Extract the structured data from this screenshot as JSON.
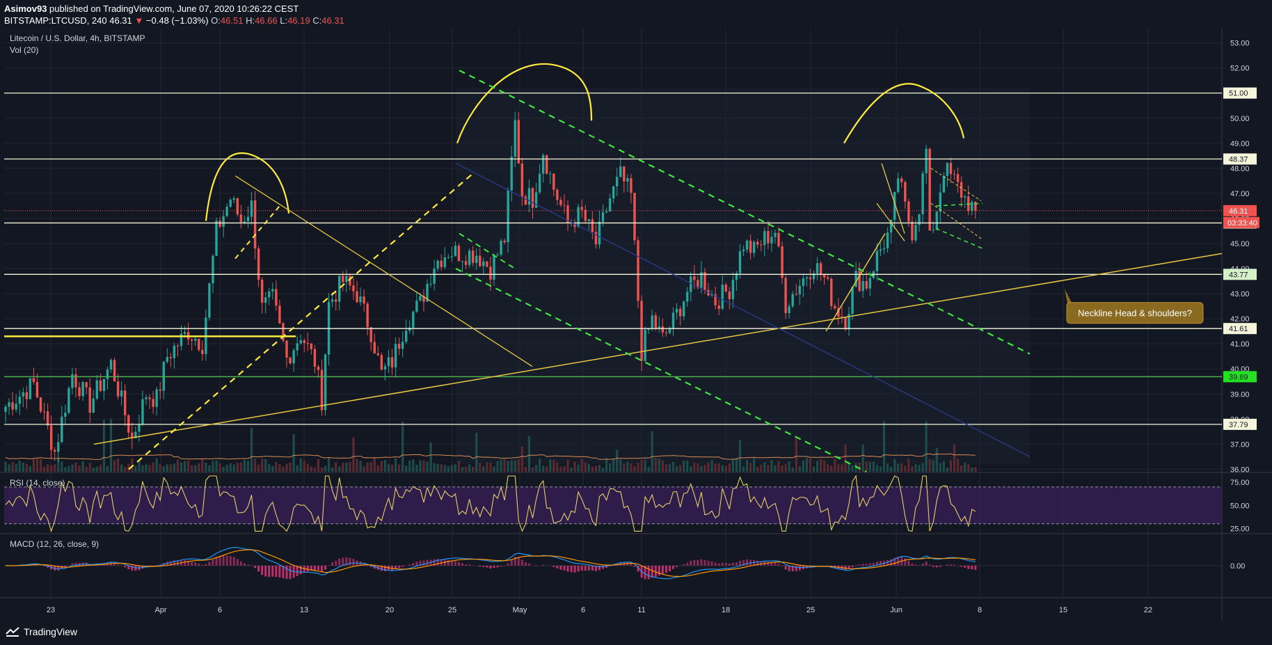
{
  "header": {
    "author": "Asimov93",
    "published_text": "published on TradingView.com, June 07, 2020 10:26:22 CEST",
    "symbol": "BITSTAMP:LTCUSD, 240",
    "last": "46.31",
    "change": "−0.48 (−1.03%)",
    "o_label": "O:",
    "o_value": "46.51",
    "h_label": "H:",
    "h_value": "46.66",
    "l_label": "L:",
    "l_value": "46.19",
    "c_label": "C:",
    "c_value": "46.31"
  },
  "footer": {
    "logo_text": "TradingView"
  },
  "colors": {
    "background": "#131722",
    "up": "#26a69a",
    "down": "#ef5350",
    "annotation_yellow": "#ffeb3b",
    "trend_green": "#3ee83e",
    "level_white": "#f5f5dc",
    "level_green": "#4caf50",
    "rsi_band": "#3a1f5c",
    "macd_line": "#2196f3",
    "signal_line": "#ff9800"
  },
  "chart_data": [
    {
      "type": "candlestick",
      "title": "Litecoin / U.S. Dollar, 4h, BITSTAMP",
      "volume_label": "Vol (20)",
      "x_tick_labels": [
        "23",
        "Apr",
        "6",
        "13",
        "20",
        "25",
        "May",
        "6",
        "11",
        "18",
        "25",
        "Jun",
        "8",
        "15",
        "22"
      ],
      "ylim": [
        35.9,
        53.6
      ],
      "y_tick_labels": [
        "53.00",
        "52.00",
        "51.00",
        "50.00",
        "49.00",
        "48.00",
        "47.00",
        "46.00",
        "45.00",
        "44.00",
        "43.00",
        "42.00",
        "41.00",
        "40.00",
        "39.00",
        "38.00",
        "37.00",
        "36.00"
      ],
      "price_labels": [
        {
          "value": 51.0,
          "text": "51.00",
          "style": "white"
        },
        {
          "value": 48.37,
          "text": "48.37",
          "style": "white"
        },
        {
          "value": 46.31,
          "text": "46.31",
          "style": "red"
        },
        {
          "value": 45.82,
          "text": "45.82",
          "style": "white"
        },
        {
          "value": 43.77,
          "text": "43.77",
          "style": "lightgreen"
        },
        {
          "value": 41.61,
          "text": "41.61",
          "style": "white"
        },
        {
          "value": 39.69,
          "text": "39.69",
          "style": "green"
        },
        {
          "value": 37.79,
          "text": "37.79",
          "style": "white"
        }
      ],
      "countdown": "03:33:40",
      "close_path_points": [
        [
          0,
          38.5
        ],
        [
          8,
          39.4
        ],
        [
          14,
          36.7
        ],
        [
          19,
          39.8
        ],
        [
          24,
          38.6
        ],
        [
          30,
          40.2
        ],
        [
          36,
          37.2
        ],
        [
          40,
          39.0
        ],
        [
          43,
          38.8
        ],
        [
          46,
          40.5
        ],
        [
          52,
          41.5
        ],
        [
          56,
          41.0
        ],
        [
          60,
          45.5
        ],
        [
          64,
          46.8
        ],
        [
          67,
          45.9
        ],
        [
          70,
          46.5
        ],
        [
          73,
          42.4
        ],
        [
          76,
          42.8
        ],
        [
          80,
          40.4
        ],
        [
          84,
          41.4
        ],
        [
          88,
          40.3
        ],
        [
          90,
          38.8
        ],
        [
          92,
          42.6
        ],
        [
          96,
          43.5
        ],
        [
          100,
          43.0
        ],
        [
          104,
          41.5
        ],
        [
          107,
          39.8
        ],
        [
          110,
          40.3
        ],
        [
          114,
          41.9
        ],
        [
          118,
          42.6
        ],
        [
          122,
          44.2
        ],
        [
          126,
          44.7
        ],
        [
          130,
          44.6
        ],
        [
          134,
          44.6
        ],
        [
          138,
          44.0
        ],
        [
          142,
          45.2
        ],
        [
          145,
          49.8
        ],
        [
          147,
          47.0
        ],
        [
          150,
          46.8
        ],
        [
          153,
          48.7
        ],
        [
          156,
          47.2
        ],
        [
          160,
          45.8
        ],
        [
          164,
          46.2
        ],
        [
          168,
          45.0
        ],
        [
          172,
          46.8
        ],
        [
          175,
          47.7
        ],
        [
          178,
          46.9
        ],
        [
          181,
          40.7
        ],
        [
          184,
          42.0
        ],
        [
          187,
          41.2
        ],
        [
          190,
          41.9
        ],
        [
          194,
          43.1
        ],
        [
          198,
          43.7
        ],
        [
          202,
          42.7
        ],
        [
          206,
          43.2
        ],
        [
          210,
          45.0
        ],
        [
          213,
          44.7
        ],
        [
          216,
          45.2
        ],
        [
          219,
          45.5
        ],
        [
          222,
          42.6
        ],
        [
          226,
          43.4
        ],
        [
          230,
          44.2
        ],
        [
          233,
          43.6
        ],
        [
          236,
          42.5
        ],
        [
          239,
          42.0
        ],
        [
          242,
          43.6
        ],
        [
          245,
          43.4
        ],
        [
          248,
          44.5
        ],
        [
          252,
          45.6
        ],
        [
          254,
          47.7
        ],
        [
          256,
          46.4
        ],
        [
          258,
          45.5
        ],
        [
          260,
          46.5
        ],
        [
          262,
          48.7
        ],
        [
          263,
          45.1
        ],
        [
          265,
          46.4
        ],
        [
          267,
          48.0
        ],
        [
          270,
          47.5
        ],
        [
          273,
          46.8
        ],
        [
          276,
          46.31
        ]
      ],
      "annotation_text": "Neckline Head & shoulders?"
    },
    {
      "type": "line",
      "title": "RSI (14, close)",
      "ylim": [
        20,
        85
      ],
      "y_tick_labels": [
        "75.00",
        "50.00",
        "25.00"
      ],
      "band": [
        30,
        70
      ]
    },
    {
      "type": "line",
      "title": "MACD (12, 26, close, 9)",
      "y_tick_labels": [
        "0.00"
      ]
    }
  ]
}
